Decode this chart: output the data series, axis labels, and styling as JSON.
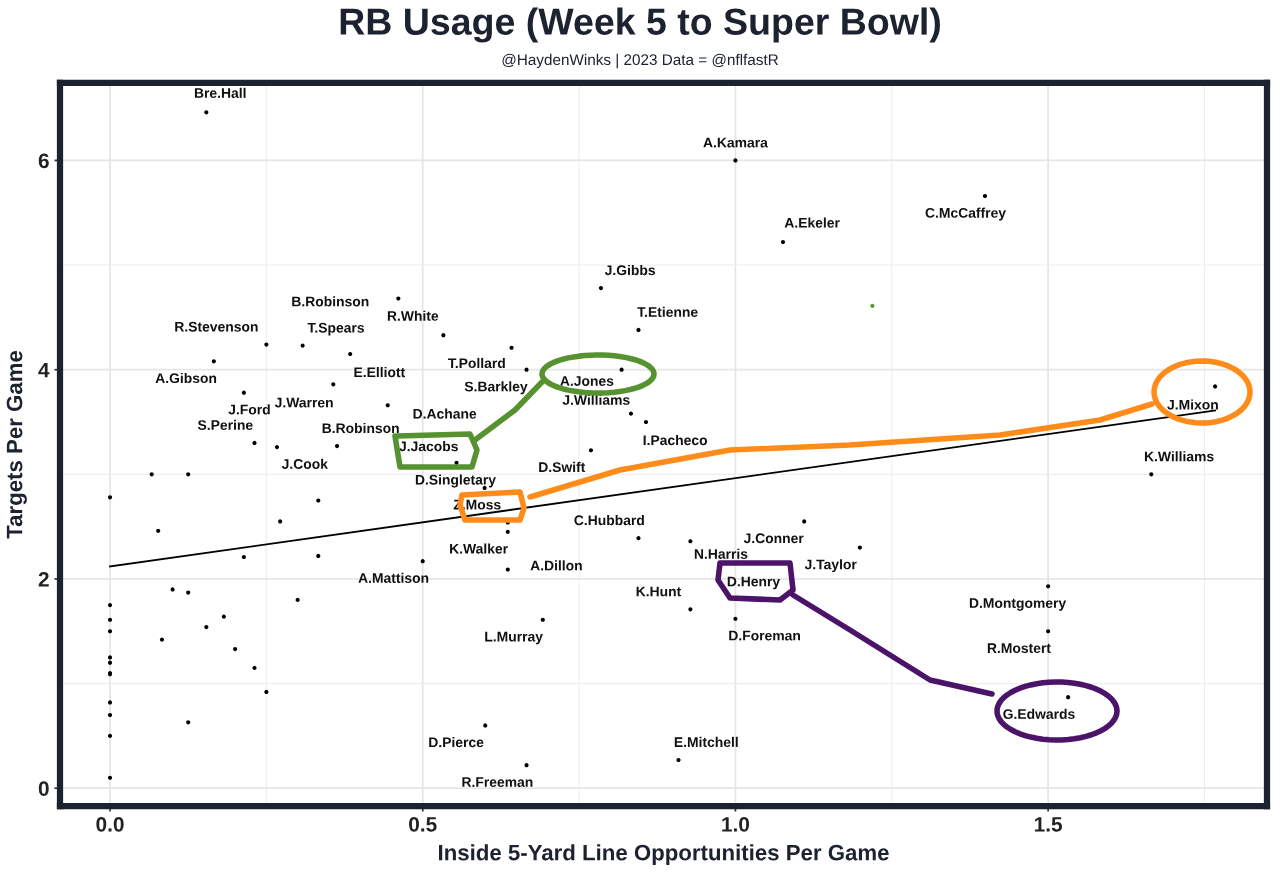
{
  "chart_data": {
    "type": "scatter",
    "title": "RB Usage (Week 5 to Super Bowl)",
    "subtitle": "@HaydenWinks | 2023 Data = @nflfastR",
    "xlabel": "Inside 5-Yard Line Opportunities Per Game",
    "ylabel": "Targets Per Game",
    "xlim": [
      -0.08,
      1.85
    ],
    "ylim": [
      -0.17,
      6.74
    ],
    "xticks": [
      {
        "value": 0,
        "label": "0.0"
      },
      {
        "value": 0.5,
        "label": "0.5"
      },
      {
        "value": 1,
        "label": "1.0"
      },
      {
        "value": 1.5,
        "label": "1.5"
      }
    ],
    "yticks": [
      0,
      2,
      4,
      6
    ],
    "grid": true,
    "series": [
      {
        "marker": "circle",
        "color": "#000000",
        "x": [
          0.154,
          1.0,
          1.076,
          1.399,
          0.785,
          0.845,
          0.461,
          0.533,
          0.642,
          0.666,
          0.818,
          0.833,
          0.857,
          0.25,
          0.308,
          0.384,
          0.166,
          0.357,
          0.214,
          0.444,
          0.231,
          0.363,
          0.267,
          0.554,
          0.599,
          0.636,
          0.636,
          0.769,
          0.845,
          0.928,
          1.11,
          1.0,
          1.199,
          0.636,
          0.928,
          1.0,
          0.692,
          0.6,
          0.666,
          0.909,
          0.5,
          1.5,
          1.5,
          1.532,
          1.767,
          1.665,
          0,
          0.0667,
          0.125,
          0.333,
          0.272,
          0.077,
          0.214,
          0.333,
          0.1,
          0.125,
          0.3,
          0.182,
          0.154,
          0.2,
          0.083,
          0.231,
          0.25,
          0.125,
          0,
          0,
          0,
          0,
          0,
          0,
          0,
          0,
          0,
          0,
          0
        ],
        "values": [
          6.46,
          6.0,
          5.22,
          5.66,
          4.78,
          4.38,
          4.68,
          4.33,
          4.21,
          4.0,
          4.0,
          3.58,
          3.5,
          4.24,
          4.23,
          4.15,
          4.08,
          3.86,
          3.78,
          3.66,
          3.3,
          3.27,
          3.26,
          3.11,
          2.87,
          2.54,
          2.45,
          3.23,
          2.39,
          2.36,
          2.55,
          2.15,
          2.3,
          2.09,
          1.71,
          1.62,
          1.61,
          0.6,
          0.22,
          0.27,
          2.17,
          1.93,
          1.5,
          0.87,
          3.84,
          3.0,
          2.78,
          3.0,
          3.0,
          2.75,
          2.55,
          2.46,
          2.21,
          2.22,
          1.9,
          1.87,
          1.8,
          1.64,
          1.54,
          1.33,
          1.42,
          1.15,
          0.92,
          0.63,
          1.75,
          1.61,
          1.5,
          1.25,
          1.2,
          1.1,
          1.09,
          0.82,
          0.7,
          0.5,
          0.1
        ]
      },
      {
        "marker": "circle",
        "color": "#4e9a2a",
        "x": [
          1.219
        ],
        "values": [
          4.61
        ]
      },
      {
        "type": "line",
        "color": "#000000",
        "x": [
          0,
          1.767
        ],
        "values": [
          2.12,
          3.61
        ]
      }
    ],
    "annotations": [
      {
        "text": "Bre.Hall",
        "x": 0.154,
        "y": 6.46
      },
      {
        "text": "A.Kamara",
        "x": 1.0,
        "y": 6.0
      },
      {
        "text": "A.Ekeler",
        "x": 1.076,
        "y": 5.22
      },
      {
        "text": "C.McCaffrey",
        "x": 1.399,
        "y": 5.66
      },
      {
        "text": "J.Gibbs",
        "x": 0.785,
        "y": 4.78
      },
      {
        "text": "T.Etienne",
        "x": 0.845,
        "y": 4.38
      },
      {
        "text": "B.Robinson",
        "x": 0.461,
        "y": 4.68
      },
      {
        "text": "R.White",
        "x": 0.533,
        "y": 4.33
      },
      {
        "text": "T.Pollard",
        "x": 0.642,
        "y": 4.21
      },
      {
        "text": "S.Barkley",
        "x": 0.666,
        "y": 4.0
      },
      {
        "text": "A.Jones",
        "x": 0.818,
        "y": 4.0
      },
      {
        "text": "J.Williams",
        "x": 0.833,
        "y": 3.58
      },
      {
        "text": "I.Pacheco",
        "x": 0.857,
        "y": 3.5
      },
      {
        "text": "R.Stevenson",
        "x": 0.25,
        "y": 4.24
      },
      {
        "text": "T.Spears",
        "x": 0.308,
        "y": 4.23
      },
      {
        "text": "E.Elliott",
        "x": 0.384,
        "y": 4.15
      },
      {
        "text": "A.Gibson",
        "x": 0.166,
        "y": 4.08
      },
      {
        "text": "J.Warren",
        "x": 0.357,
        "y": 3.86
      },
      {
        "text": "J.Ford",
        "x": 0.214,
        "y": 3.78
      },
      {
        "text": "D.Achane",
        "x": 0.444,
        "y": 3.66
      },
      {
        "text": "S.Perine",
        "x": 0.231,
        "y": 3.3
      },
      {
        "text": "B.Robinson",
        "x": 0.363,
        "y": 3.27
      },
      {
        "text": "J.Cook",
        "x": 0.267,
        "y": 3.26
      },
      {
        "text": "J.Jacobs",
        "x": 0.554,
        "y": 3.11
      },
      {
        "text": "D.Singletary",
        "x": 0.599,
        "y": 2.87
      },
      {
        "text": "Z.Moss",
        "x": 0.636,
        "y": 2.54
      },
      {
        "text": "K.Walker",
        "x": 0.636,
        "y": 2.45
      },
      {
        "text": "D.Swift",
        "x": 0.769,
        "y": 3.23
      },
      {
        "text": "C.Hubbard",
        "x": 0.845,
        "y": 2.39
      },
      {
        "text": "N.Harris",
        "x": 0.928,
        "y": 2.36
      },
      {
        "text": "J.Conner",
        "x": 1.11,
        "y": 2.55
      },
      {
        "text": "D.Henry",
        "x": 1.0,
        "y": 2.15
      },
      {
        "text": "J.Taylor",
        "x": 1.199,
        "y": 2.3
      },
      {
        "text": "A.Dillon",
        "x": 0.636,
        "y": 2.09
      },
      {
        "text": "K.Hunt",
        "x": 0.928,
        "y": 1.71
      },
      {
        "text": "D.Foreman",
        "x": 1.0,
        "y": 1.62
      },
      {
        "text": "L.Murray",
        "x": 0.692,
        "y": 1.61
      },
      {
        "text": "D.Pierce",
        "x": 0.6,
        "y": 0.6
      },
      {
        "text": "R.Freeman",
        "x": 0.666,
        "y": 0.22
      },
      {
        "text": "E.Mitchell",
        "x": 0.909,
        "y": 0.27
      },
      {
        "text": "A.Mattison",
        "x": 0.5,
        "y": 2.17
      },
      {
        "text": "D.Montgomery",
        "x": 1.5,
        "y": 1.93
      },
      {
        "text": "R.Mostert",
        "x": 1.5,
        "y": 1.5
      },
      {
        "text": "G.Edwards",
        "x": 1.532,
        "y": 0.87
      },
      {
        "text": "J.Mixon",
        "x": 1.767,
        "y": 3.84
      },
      {
        "text": "K.Williams",
        "x": 1.665,
        "y": 3.0
      }
    ]
  }
}
